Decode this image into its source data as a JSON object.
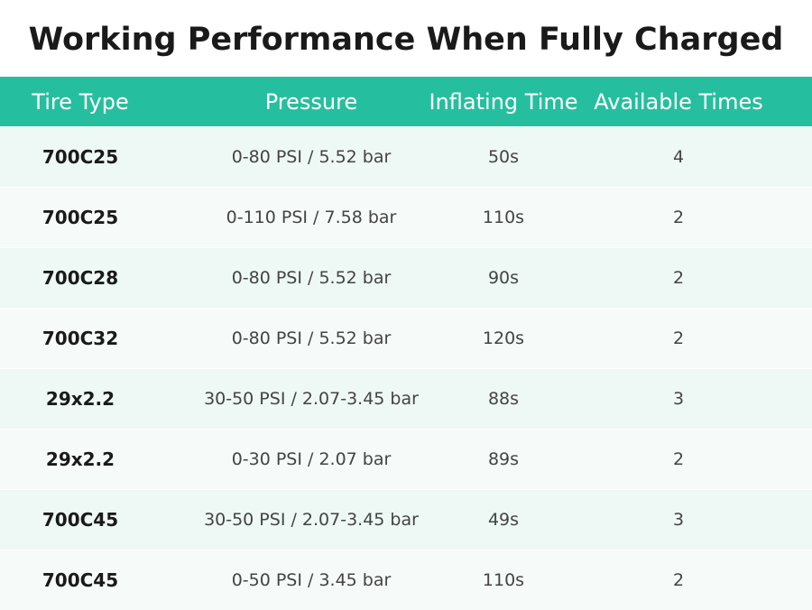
{
  "header": {
    "title": "Working Performance When Fully Charged"
  },
  "table": {
    "columns": [
      "Tire Type",
      "Pressure",
      "Inflating Time",
      "Available Times"
    ],
    "rows": [
      [
        "700C25",
        "0-80 PSI / 5.52 bar",
        "50s",
        "4"
      ],
      [
        "700C25",
        "0-110 PSI / 7.58 bar",
        "110s",
        "2"
      ],
      [
        "700C28",
        "0-80 PSI / 5.52 bar",
        "90s",
        "2"
      ],
      [
        "700C32",
        "0-80 PSI / 5.52 bar",
        "120s",
        "2"
      ],
      [
        "29x2.2",
        "30-50 PSI / 2.07-3.45 bar",
        "88s",
        "3"
      ],
      [
        "29x2.2",
        "0-30 PSI / 2.07 bar",
        "89s",
        "2"
      ],
      [
        "700C45",
        "30-50 PSI / 2.07-3.45 bar",
        "49s",
        "3"
      ],
      [
        "700C45",
        "0-50 PSI / 3.45 bar",
        "110s",
        "2"
      ]
    ]
  }
}
